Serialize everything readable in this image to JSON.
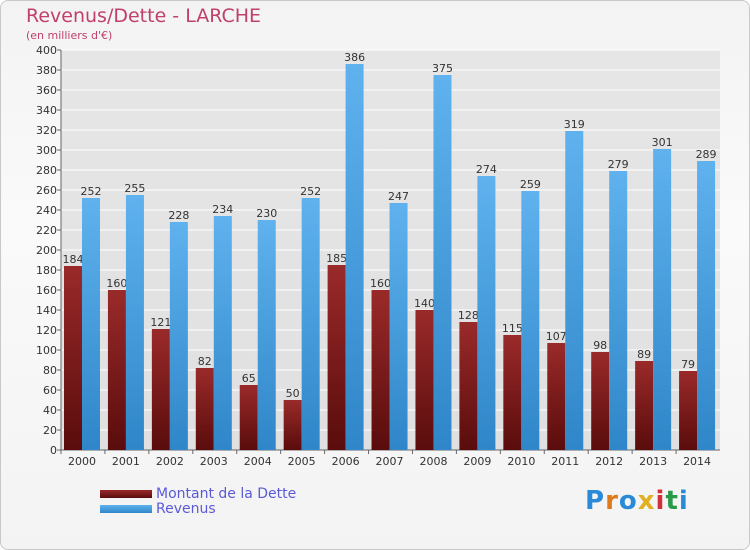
{
  "header": {
    "title": "Revenus/Dette - LARCHE",
    "subtitle": "(en milliers d'€)"
  },
  "legend": {
    "debt_label": "Montant de la Dette",
    "revenue_label": "Revenus"
  },
  "logo": {
    "text": "Proxiti"
  },
  "colors": {
    "debt": "#7a1a1a",
    "revenue": "#3a9be0",
    "grid": "#ffffff",
    "axis": "#333333"
  },
  "chart_data": {
    "type": "bar",
    "title": "Revenus/Dette - LARCHE",
    "subtitle": "(en milliers d'€)",
    "categories": [
      "2000",
      "2001",
      "2002",
      "2003",
      "2004",
      "2005",
      "2006",
      "2007",
      "2008",
      "2009",
      "2010",
      "2011",
      "2012",
      "2013",
      "2014"
    ],
    "series": [
      {
        "name": "Montant de la Dette",
        "values": [
          184,
          160,
          121,
          82,
          65,
          50,
          185,
          160,
          140,
          128,
          115,
          107,
          98,
          89,
          79
        ]
      },
      {
        "name": "Revenus",
        "values": [
          252,
          255,
          228,
          234,
          230,
          252,
          386,
          247,
          375,
          274,
          259,
          319,
          279,
          301,
          289
        ]
      }
    ],
    "ylim": [
      0,
      400
    ],
    "ytick_step": 20,
    "grid": true,
    "legend_position": "bottom-left"
  }
}
